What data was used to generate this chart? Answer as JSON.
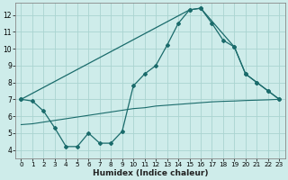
{
  "title": "",
  "xlabel": "Humidex (Indice chaleur)",
  "ylabel": "",
  "background_color": "#ceecea",
  "grid_color": "#aad4d0",
  "line_color": "#1a6b6b",
  "xlim": [
    -0.5,
    23.5
  ],
  "ylim": [
    3.5,
    12.7
  ],
  "yticks": [
    4,
    5,
    6,
    7,
    8,
    9,
    10,
    11,
    12
  ],
  "xticks": [
    0,
    1,
    2,
    3,
    4,
    5,
    6,
    7,
    8,
    9,
    10,
    11,
    12,
    13,
    14,
    15,
    16,
    17,
    18,
    19,
    20,
    21,
    22,
    23
  ],
  "line1_x": [
    0,
    1,
    2,
    3,
    4,
    5,
    6,
    7,
    8,
    9,
    10,
    11,
    12,
    13,
    14,
    15,
    16,
    17,
    18,
    19,
    20,
    21,
    22,
    23
  ],
  "line1_y": [
    7.0,
    6.9,
    6.3,
    5.3,
    4.2,
    4.2,
    5.0,
    4.4,
    4.4,
    5.1,
    7.8,
    8.5,
    9.0,
    10.2,
    11.5,
    12.3,
    12.4,
    11.5,
    10.5,
    10.1,
    8.5,
    8.0,
    7.5,
    7.0
  ],
  "line2_x": [
    0,
    15,
    16,
    19,
    20,
    21,
    22,
    23
  ],
  "line2_y": [
    7.0,
    12.3,
    12.4,
    10.1,
    8.5,
    8.0,
    7.5,
    7.0
  ],
  "line3_x": [
    0,
    1,
    2,
    3,
    4,
    5,
    6,
    7,
    8,
    9,
    10,
    11,
    12,
    13,
    14,
    15,
    16,
    17,
    18,
    19,
    20,
    21,
    22,
    23
  ],
  "line3_y": [
    5.5,
    5.55,
    5.65,
    5.75,
    5.85,
    5.95,
    6.05,
    6.15,
    6.25,
    6.35,
    6.45,
    6.5,
    6.6,
    6.65,
    6.7,
    6.75,
    6.8,
    6.85,
    6.88,
    6.9,
    6.93,
    6.95,
    6.97,
    7.0
  ]
}
